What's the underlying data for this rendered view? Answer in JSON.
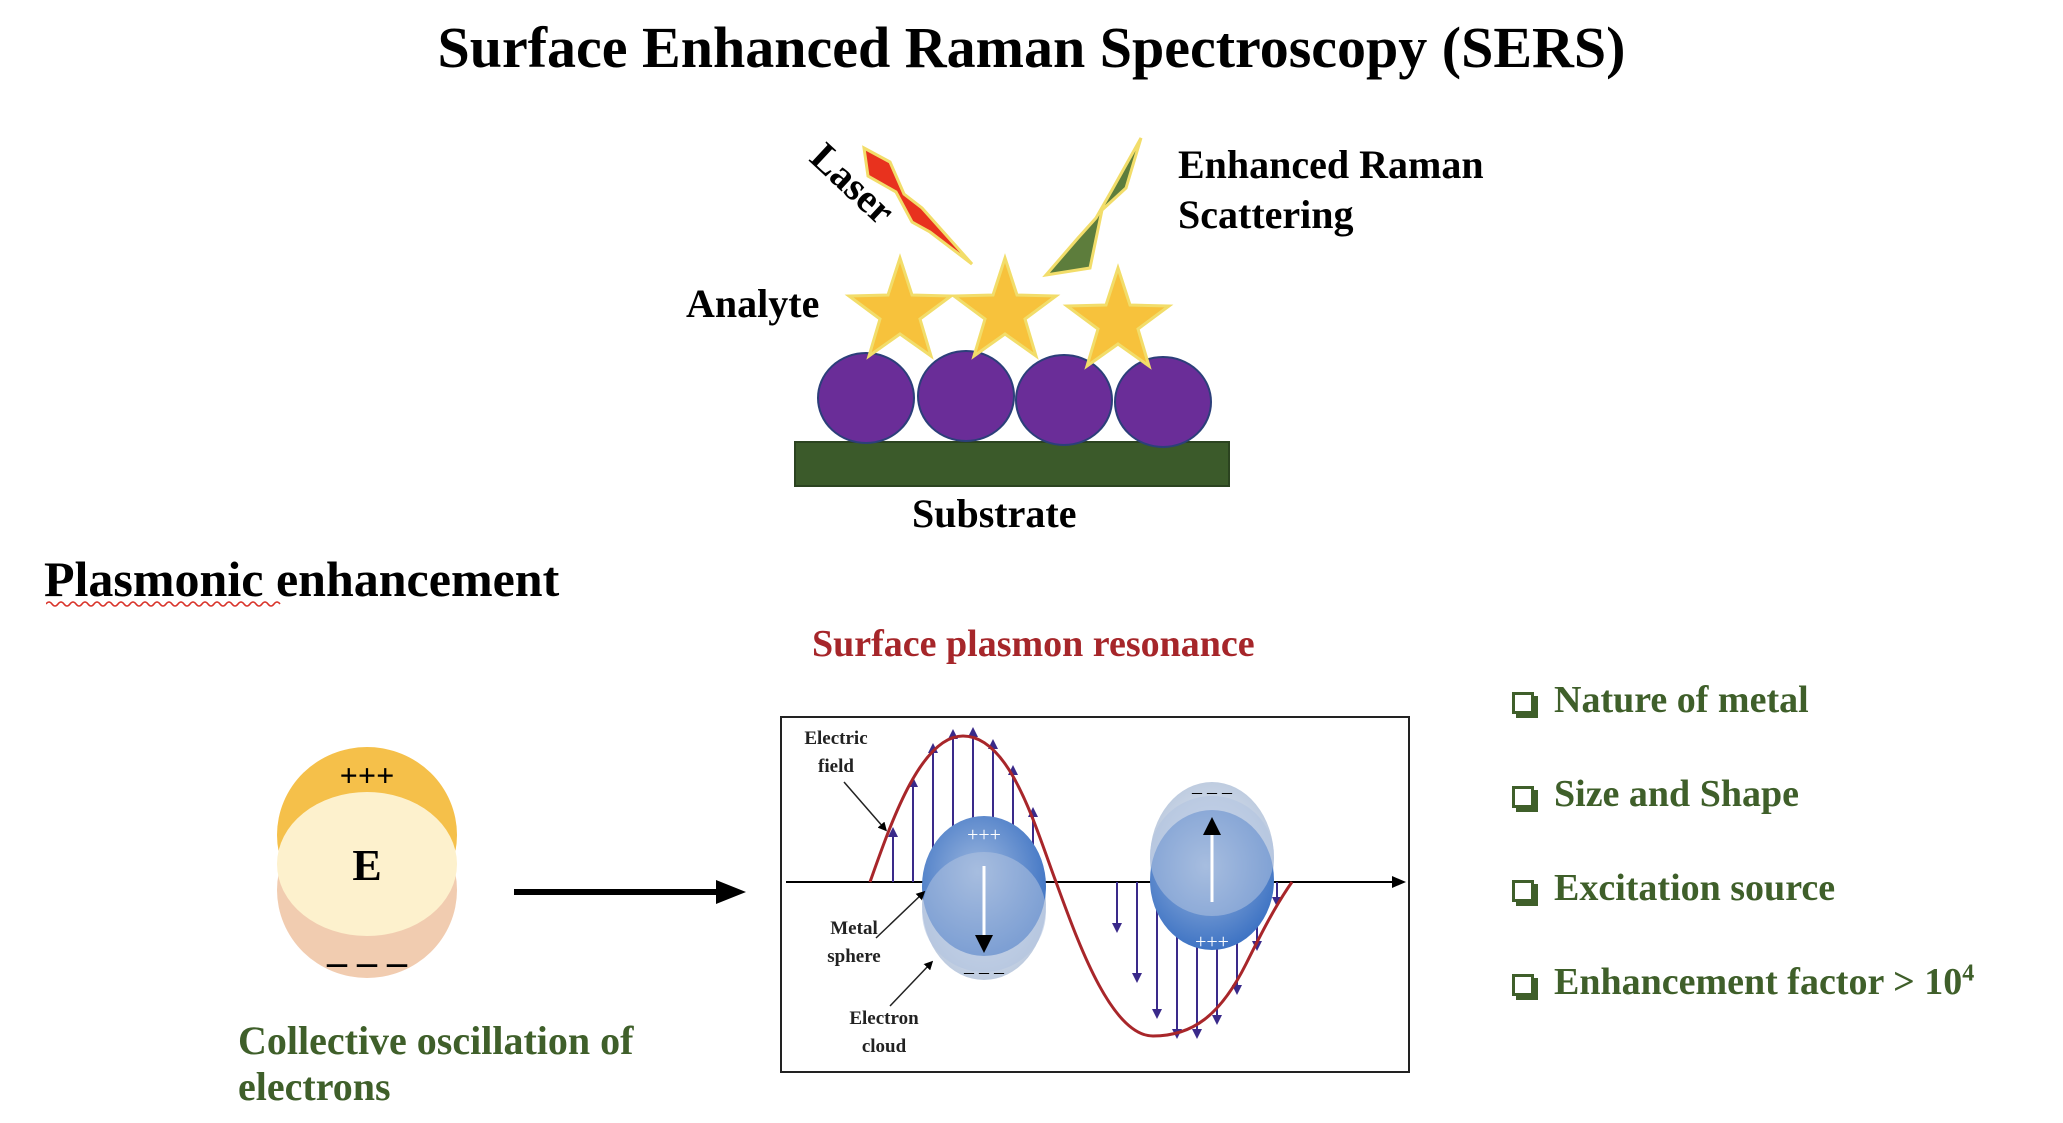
{
  "title": "Surface Enhanced Raman Spectroscopy (SERS)",
  "top_diagram": {
    "laser_label": "Laser",
    "scattering_label_line1": "Enhanced Raman",
    "scattering_label_line2": "Scattering",
    "analyte_label": "Analyte",
    "substrate_label": "Substrate",
    "colors": {
      "laser": "#e8321e",
      "scattering": "#5d7d3c",
      "star": "#f7c23c",
      "particle": "#6a2d98",
      "substrate": "#3b5a2a"
    }
  },
  "plasmonic": {
    "heading_underlined": "Plasmonic",
    "heading_rest": " enhancement",
    "collective_line1": "Collective oscillation of",
    "collective_line2": "electrons",
    "dipole_top_charge": "+++",
    "dipole_center": "E",
    "dipole_bottom_charge": "– – –"
  },
  "spr": {
    "title": "Surface plasmon resonance",
    "electric_field_line1": "Electric",
    "electric_field_line2": "field",
    "metal_sphere_line1": "Metal",
    "metal_sphere_line2": "sphere",
    "electron_cloud_line1": "Electron",
    "electron_cloud_line2": "cloud",
    "left_top_charge": "+++",
    "left_bottom_charge": "– – –",
    "right_top_charge": "– – –",
    "right_bottom_charge": "+++"
  },
  "factors": {
    "items": [
      {
        "text": "Nature of metal"
      },
      {
        "text": "Size and Shape"
      },
      {
        "text": "Excitation source"
      },
      {
        "text": "Enhancement factor > 10",
        "sup": "4"
      }
    ]
  }
}
